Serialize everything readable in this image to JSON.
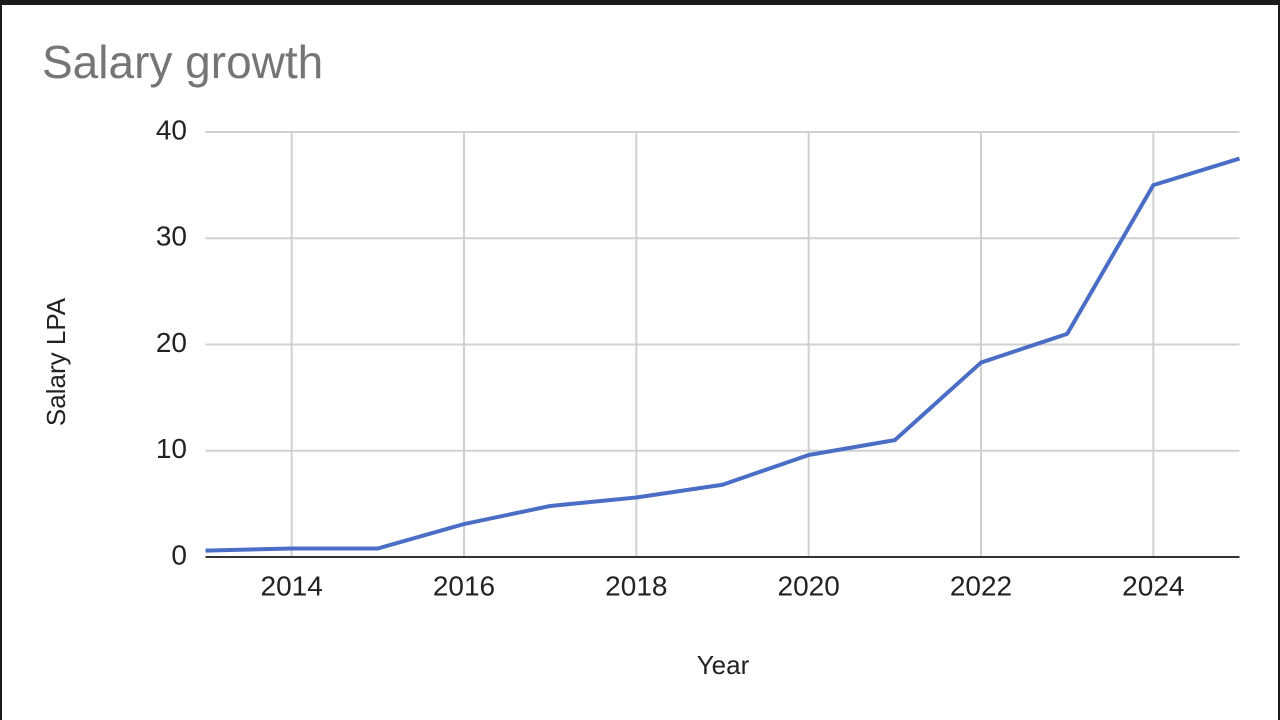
{
  "chart_data": {
    "type": "line",
    "title": "Salary growth",
    "x_label": "Year",
    "y_label": "Salary LPA",
    "x": [
      2013,
      2014,
      2015,
      2016,
      2017,
      2018,
      2019,
      2020,
      2021,
      2022,
      2023,
      2024,
      2025
    ],
    "series": [
      {
        "name": "Salary LPA",
        "color": "#4a6ec6",
        "values": [
          0.6,
          0.8,
          0.8,
          3.1,
          4.8,
          5.6,
          6.8,
          9.6,
          11.0,
          18.3,
          21.0,
          35.0,
          37.5
        ]
      }
    ],
    "xlim": [
      2013,
      2025
    ],
    "xticks": [
      2014,
      2016,
      2018,
      2020,
      2022,
      2024
    ],
    "ylim": [
      0,
      40
    ],
    "yticks": [
      0,
      10,
      20,
      30,
      40
    ],
    "grid": true
  }
}
